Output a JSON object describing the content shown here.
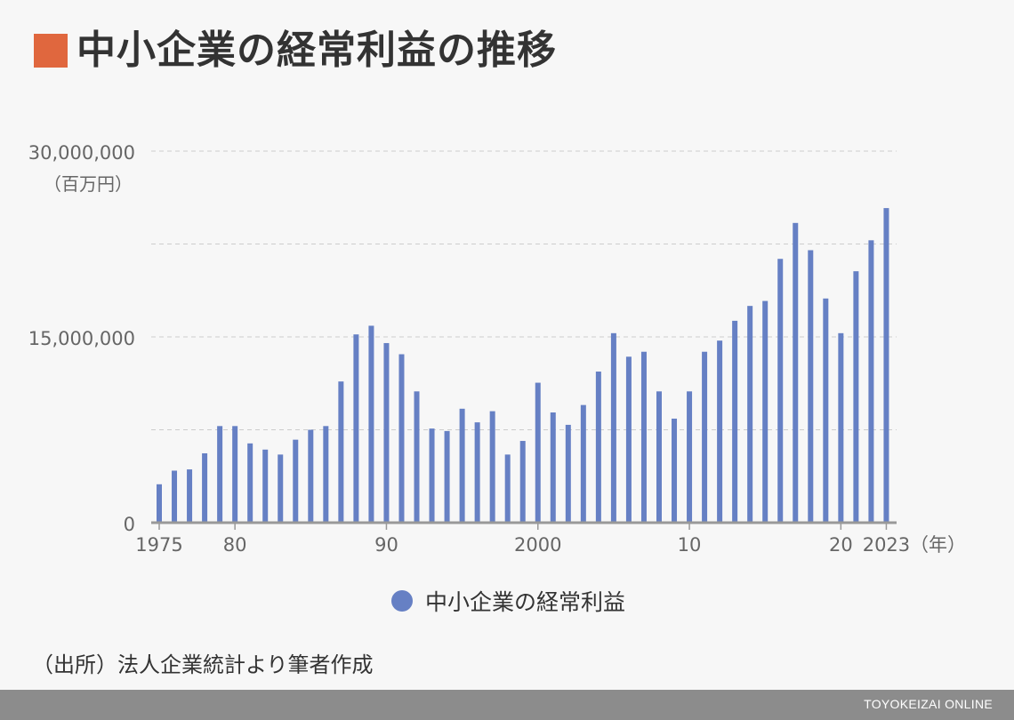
{
  "title": "中小企業の経常利益の推移",
  "colors": {
    "accent": "#e0673e",
    "bar": "#6680c4",
    "grid": "#cccccc",
    "axis": "#999999",
    "footer": "#8c8c8c"
  },
  "source": "（出所）法人企業統計より筆者作成",
  "footer_brand": "TOYOKEIZAI ONLINE",
  "chart_data": {
    "type": "bar",
    "unit_label": "（百万円）",
    "x_unit_label": "（年）",
    "ylim": [
      0,
      30000000
    ],
    "grid": true,
    "y_ticks": [
      {
        "value": 0,
        "label": "0"
      },
      {
        "value": 7500000,
        "label": ""
      },
      {
        "value": 15000000,
        "label": "15,000,000"
      },
      {
        "value": 22500000,
        "label": ""
      },
      {
        "value": 30000000,
        "label": "30,000,000"
      }
    ],
    "x_tick_labels": [
      {
        "year": 1975,
        "label": "1975"
      },
      {
        "year": 1980,
        "label": "80"
      },
      {
        "year": 1990,
        "label": "90"
      },
      {
        "year": 2000,
        "label": "2000"
      },
      {
        "year": 2010,
        "label": "10"
      },
      {
        "year": 2020,
        "label": "20"
      },
      {
        "year": 2023,
        "label": "2023"
      }
    ],
    "series": [
      {
        "name": "中小企業の経常利益",
        "years": [
          1975,
          1976,
          1977,
          1978,
          1979,
          1980,
          1981,
          1982,
          1983,
          1984,
          1985,
          1986,
          1987,
          1988,
          1989,
          1990,
          1991,
          1992,
          1993,
          1994,
          1995,
          1996,
          1997,
          1998,
          1999,
          2000,
          2001,
          2002,
          2003,
          2004,
          2005,
          2006,
          2007,
          2008,
          2009,
          2010,
          2011,
          2012,
          2013,
          2014,
          2015,
          2016,
          2017,
          2018,
          2019,
          2020,
          2021,
          2022,
          2023
        ],
        "values": [
          3100000,
          4200000,
          4300000,
          5600000,
          7800000,
          7800000,
          6400000,
          5900000,
          5500000,
          6700000,
          7500000,
          7800000,
          11400000,
          15200000,
          15900000,
          14500000,
          13600000,
          10600000,
          7600000,
          7400000,
          9200000,
          8100000,
          9000000,
          5500000,
          6600000,
          11300000,
          8900000,
          7900000,
          9500000,
          12200000,
          15300000,
          13400000,
          13800000,
          10600000,
          8400000,
          10600000,
          13800000,
          14700000,
          16300000,
          17500000,
          17900000,
          21300000,
          24200000,
          22000000,
          18100000,
          15300000,
          20300000,
          22800000,
          25400000
        ]
      }
    ]
  }
}
